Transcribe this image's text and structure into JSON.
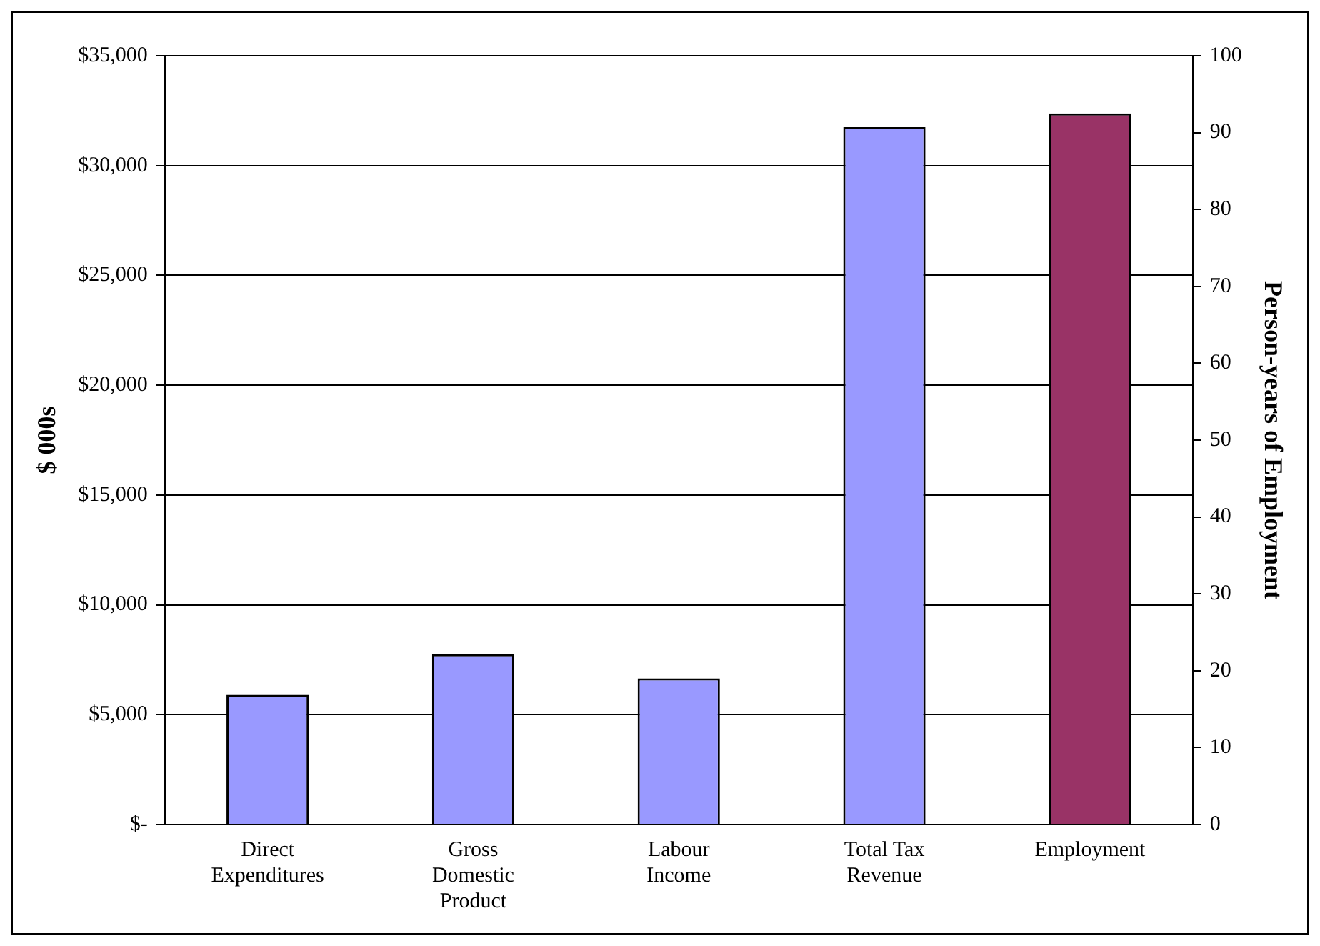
{
  "chart_data": {
    "type": "bar",
    "ylabel": "$ 000s",
    "y2label": "Person-years of Employment",
    "categories": [
      "Direct Expenditures",
      "Gross Domestic Product",
      "Labour Income",
      "Total Tax Revenue",
      "Employment"
    ],
    "series": [
      {
        "color": "#9999ff",
        "values": [
          5900,
          7750,
          6650,
          31750,
          null
        ]
      },
      {
        "color": "#993366",
        "axis": "y2",
        "values": [
          null,
          null,
          null,
          null,
          92.5
        ]
      }
    ],
    "ylim": [
      0,
      35000
    ],
    "yticks": [
      {
        "value": 0,
        "label": "$-"
      },
      {
        "value": 5000,
        "label": "$5,000"
      },
      {
        "value": 10000,
        "label": "$10,000"
      },
      {
        "value": 15000,
        "label": "$15,000"
      },
      {
        "value": 20000,
        "label": "$20,000"
      },
      {
        "value": 25000,
        "label": "$25,000"
      },
      {
        "value": 30000,
        "label": "$30,000"
      },
      {
        "value": 35000,
        "label": "$35,000"
      }
    ],
    "y2lim": [
      0,
      100
    ],
    "y2ticks": [
      0,
      10,
      20,
      30,
      40,
      50,
      60,
      70,
      80,
      90,
      100
    ],
    "grid": "y",
    "legend": false
  }
}
